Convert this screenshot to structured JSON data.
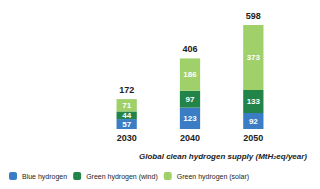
{
  "chart_data": {
    "type": "bar",
    "title": "Global clean hydrogen supply (MtH₂eq/year)",
    "categories": [
      "2030",
      "2040",
      "2050"
    ],
    "series": [
      {
        "name": "Blue hydrogen",
        "color": "#3b7dc4",
        "values": [
          57,
          123,
          92
        ]
      },
      {
        "name": "Green hydrogen (wind)",
        "color": "#23844a",
        "values": [
          44,
          97,
          133
        ]
      },
      {
        "name": "Green hydrogen (solar)",
        "color": "#9fd06a",
        "values": [
          71,
          186,
          373
        ]
      }
    ],
    "totals": [
      172,
      406,
      598
    ],
    "ylim": [
      0,
      650
    ],
    "stacked": true,
    "data_labels": true,
    "grid": false,
    "tick_labels": "x",
    "legend": "bottom-left"
  }
}
